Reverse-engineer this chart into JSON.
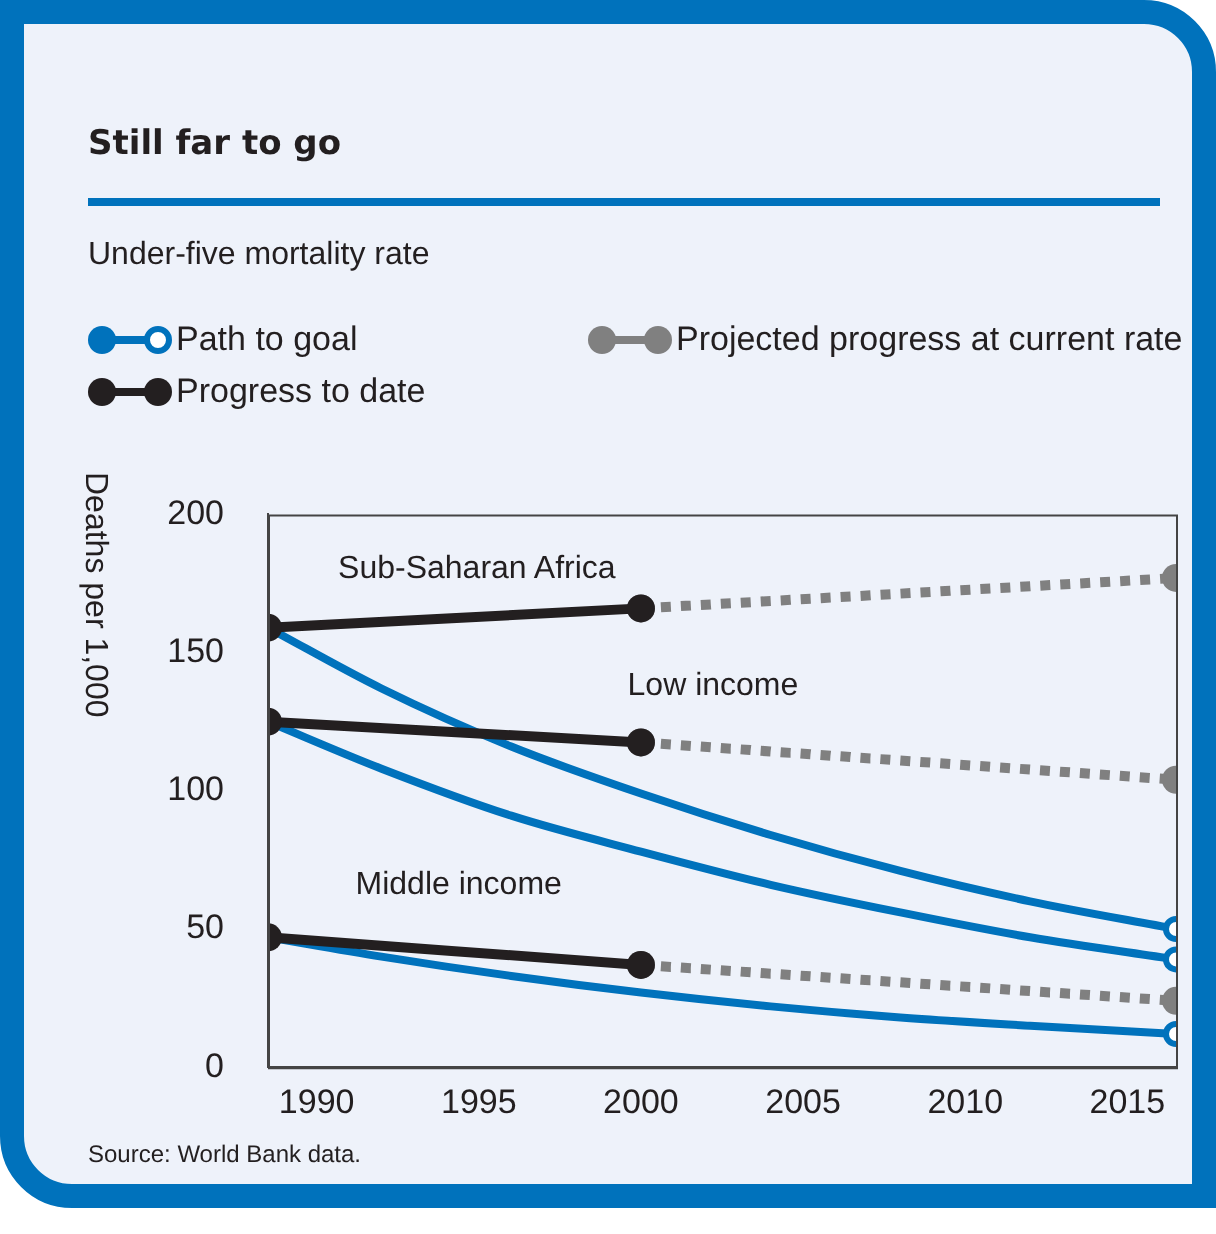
{
  "chart_data": {
    "type": "line",
    "title": "Still far to go",
    "subtitle": "Under-five mortality rate",
    "ylabel": "Deaths per 1,000",
    "xlim": [
      1988.5,
      2016.5
    ],
    "xticks": [
      1990,
      1995,
      2000,
      2005,
      2010,
      2015
    ],
    "ylim": [
      0,
      200
    ],
    "yticks": [
      0,
      50,
      100,
      150,
      200
    ],
    "grid": false,
    "legend": "top left",
    "marker": "circle",
    "series": [
      {
        "name": "Path to goal",
        "color": "#0072bc",
        "marker": "none",
        "x": [
          1988.5,
          1992,
          1996,
          2000,
          2004,
          2008,
          2012,
          2016.5
        ],
        "values": [
          159,
          137,
          116,
          99,
          84,
          71,
          60,
          50
        ]
      },
      {
        "color": "#0072bc",
        "marker": "none",
        "x": [
          1988.5,
          1992,
          1996,
          2000,
          2004,
          2008,
          2012,
          2016.5
        ],
        "values": [
          125,
          108,
          91,
          78,
          66,
          56,
          47,
          39
        ]
      },
      {
        "color": "#0072bc",
        "marker": "none",
        "x": [
          1988.5,
          1992,
          1996,
          2000,
          2004,
          2008,
          2012,
          2016.5
        ],
        "values": [
          47,
          40,
          33,
          27,
          22,
          18,
          15,
          12
        ]
      },
      {
        "type": "scatter",
        "color": "#0072bc",
        "x": [
          2016.5
        ],
        "values": [
          50
        ]
      },
      {
        "type": "scatter",
        "color": "#0072bc",
        "x": [
          2016.5
        ],
        "values": [
          39
        ]
      },
      {
        "type": "scatter",
        "color": "#0072bc",
        "x": [
          2016.5
        ],
        "values": [
          12
        ]
      },
      {
        "name": "Projected progress at current rate",
        "color": "#808080",
        "line_style": "dotted",
        "x": [
          2000,
          2016.5
        ],
        "values": [
          166,
          177
        ]
      },
      {
        "color": "#808080",
        "line_style": "dotted",
        "x": [
          2000,
          2016.5
        ],
        "values": [
          117.5,
          104
        ]
      },
      {
        "color": "#808080",
        "line_style": "dotted",
        "x": [
          2000,
          2016.5
        ],
        "values": [
          37,
          24
        ]
      },
      {
        "name": "Progress to date",
        "color": "#231f20",
        "x": [
          1988.5,
          2000
        ],
        "values": [
          159,
          166
        ]
      },
      {
        "color": "#231f20",
        "x": [
          1988.5,
          2000
        ],
        "values": [
          125,
          117.5
        ]
      },
      {
        "color": "#231f20",
        "x": [
          1988.5,
          2000
        ],
        "values": [
          47,
          37
        ]
      }
    ],
    "annotations": [
      "Sub-Saharan Africa",
      "Low income",
      "Middle income",
      "Source: World Bank data."
    ]
  }
}
